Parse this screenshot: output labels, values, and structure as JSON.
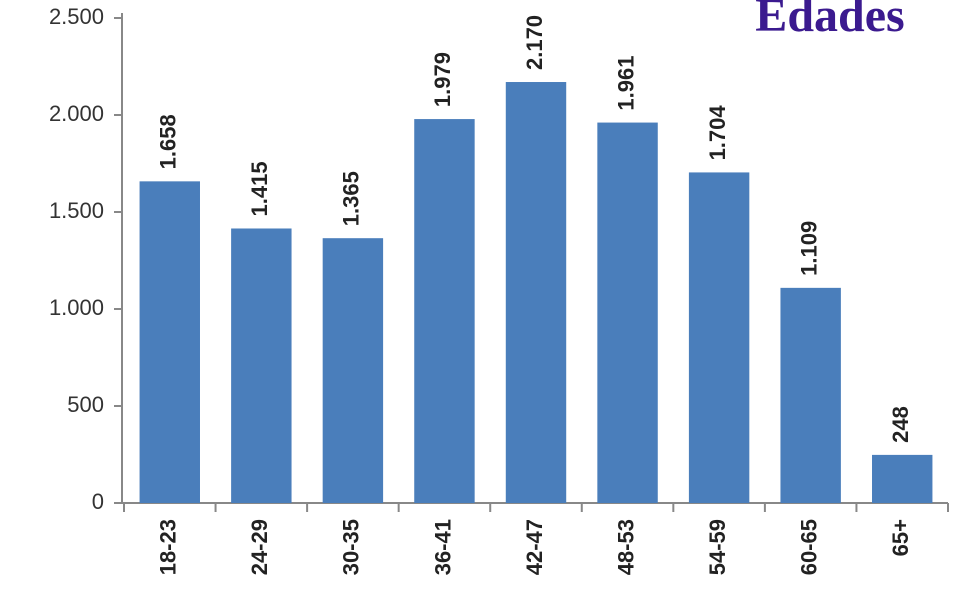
{
  "chart_data": {
    "type": "bar",
    "title": "Edades",
    "categories": [
      "18-23",
      "24-29",
      "30-35",
      "36-41",
      "42-47",
      "48-53",
      "54-59",
      "60-65",
      "65+"
    ],
    "values": [
      1658,
      1415,
      1365,
      1979,
      2170,
      1961,
      1704,
      1109,
      248
    ],
    "value_labels": [
      "1.658",
      "1.415",
      "1.365",
      "1.979",
      "2.170",
      "1.961",
      "1.704",
      "1.109",
      "248"
    ],
    "color": "#4a7ebb",
    "ylim": [
      0,
      2500
    ],
    "yticks": [
      0,
      500,
      {
        "value": 1000,
        "label": "1.000"
      },
      {
        "value": 1500,
        "label": "1.500"
      },
      {
        "value": 2000,
        "label": "2.000"
      },
      {
        "value": 2500,
        "label": "2.500"
      }
    ],
    "grid": false
  }
}
